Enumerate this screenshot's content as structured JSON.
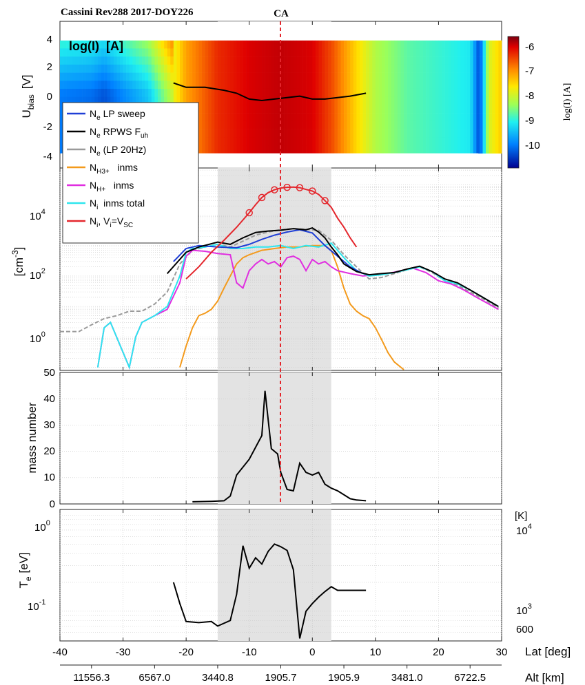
{
  "header": {
    "title": "Cassini Rev288 2017-DOY226",
    "ca_label": "CA"
  },
  "panel1": {
    "inner_label": "log(I)  [A]",
    "ylabel_main": "U",
    "ylabel_sub": "bias",
    "ylabel_unit": "[V]",
    "yticks": [
      "4",
      "2",
      "0",
      "-2",
      "-4"
    ],
    "colorbar_label": "log(I) [A]",
    "colorbar_ticks": [
      "-6",
      "-7",
      "-8",
      "-9",
      "-10"
    ]
  },
  "legend": {
    "entries": [
      {
        "main": "N",
        "sub": "e",
        "rest": " LP sweep",
        "color": "#1f3fd6"
      },
      {
        "main": "N",
        "sub": "e",
        "rest": " RPWS F",
        "sub2": "uh",
        "color": "#000000"
      },
      {
        "main": "N",
        "sub": "e",
        "rest": " (LP 20Hz)",
        "color": "#9a9a9a"
      },
      {
        "main": "N",
        "sub": "H3+",
        "rest": "   inms",
        "color": "#f39a1c"
      },
      {
        "main": "N",
        "sub": "H+",
        "rest": "   inms",
        "color": "#e02ee0"
      },
      {
        "main": "N",
        "sub": "i",
        "rest": "  inms total",
        "color": "#2ee6ee"
      },
      {
        "main": "N",
        "sub": "i",
        "rest": ", V",
        "sub2": "i",
        "rest2": "=V",
        "sub3": "SC",
        "color": "#e4262c"
      }
    ]
  },
  "panel2": {
    "ylabel": "[cm",
    "ylabel_sup": "-3",
    "ylabel_end": "]",
    "yticks": [
      {
        "base": "10",
        "exp": "4"
      },
      {
        "base": "10",
        "exp": "2"
      },
      {
        "base": "10",
        "exp": "0"
      }
    ]
  },
  "panel3": {
    "ylabel": "mass number",
    "yticks": [
      "50",
      "40",
      "30",
      "20",
      "10",
      "0"
    ]
  },
  "panel4": {
    "ylabel_main": "T",
    "ylabel_sub": "e",
    "ylabel_unit": " [eV]",
    "yticks_left": [
      {
        "base": "10",
        "exp": "0"
      },
      {
        "base": "10",
        "exp": "-1"
      }
    ],
    "right_unit": "[K]",
    "yticks_right": [
      {
        "base": "10",
        "exp": "4"
      },
      {
        "base": "10",
        "exp": "3"
      },
      {
        "plain": "600"
      }
    ]
  },
  "xaxis": {
    "lat_ticks": [
      "-40",
      "-30",
      "-20",
      "-10",
      "0",
      "10",
      "20",
      "30"
    ],
    "lat_label": "Lat [deg]",
    "alt_ticks": [
      "11556.3",
      "6567.0",
      "3440.8",
      "1905.7",
      "1905.9",
      "3481.0",
      "6722.5"
    ],
    "alt_label": "Alt [km]"
  },
  "colors": {
    "ca_line": "#e4262c",
    "shade": "#e3e3e3",
    "sweep_blue": "#1f3fd6",
    "rpws_black": "#000000",
    "lp20_gray": "#9a9a9a",
    "h3_orange": "#f39a1c",
    "h_magenta": "#e02ee0",
    "itot_cyan": "#2ee6ee",
    "vsc_red": "#e4262c"
  },
  "chart_data": [
    {
      "type": "heatmap",
      "panel": "U_bias sweep current",
      "x_quantity": "Lat [deg]",
      "xlim": [
        -40,
        30
      ],
      "ylim": [
        -5,
        5
      ],
      "color_quantity": "log(I) [A]",
      "clim": [
        -11,
        -5.7
      ],
      "approx_logI_by_lat": [
        [
          -40,
          -9.9
        ],
        [
          -35,
          -10.0
        ],
        [
          -33,
          -10.2
        ],
        [
          -30,
          -9.8
        ],
        [
          -26,
          -9.3
        ],
        [
          -24,
          -8.6
        ],
        [
          -22,
          -7.9
        ],
        [
          -20,
          -7.2
        ],
        [
          -15,
          -6.4
        ],
        [
          -10,
          -6.1
        ],
        [
          -5,
          -6.0
        ],
        [
          0,
          -6.1
        ],
        [
          3,
          -6.6
        ],
        [
          7,
          -7.6
        ],
        [
          10,
          -8.3
        ],
        [
          15,
          -8.8
        ],
        [
          20,
          -9.0
        ],
        [
          25,
          -9.2
        ],
        [
          26.5,
          -10.5
        ],
        [
          28,
          -8.0
        ],
        [
          30,
          -7.5
        ]
      ],
      "overlay_line": {
        "name": "U_bias zero crossing",
        "x": [
          -22,
          -20,
          -17,
          -14,
          -12,
          -10,
          -8,
          -6,
          -4,
          -2,
          0,
          2,
          4,
          6,
          8.5
        ],
        "y": [
          0.8,
          0.5,
          0.5,
          0.3,
          0.1,
          -0.3,
          -0.4,
          -0.3,
          -0.2,
          -0.1,
          -0.3,
          -0.3,
          -0.2,
          -0.1,
          0.1
        ]
      }
    },
    {
      "type": "line",
      "panel": "densities",
      "x_quantity": "Lat [deg]",
      "xlim": [
        -40,
        30
      ],
      "ylim_log10": [
        -1.1,
        5.55
      ],
      "y_scale": "log",
      "series": [
        {
          "name": "N_e LP sweep",
          "x": [
            -22,
            -20,
            -18,
            -15,
            -12,
            -10,
            -8,
            -6,
            -4,
            -2,
            0,
            2,
            4,
            6,
            8
          ],
          "y": [
            300,
            800,
            1000,
            900,
            850,
            1100,
            1600,
            2200,
            2800,
            3300,
            2600,
            1000,
            450,
            200,
            120
          ]
        },
        {
          "name": "N_e RPWS F_uh",
          "x": [
            -23,
            -20,
            -18,
            -15,
            -13,
            -11,
            -9,
            -7,
            -5,
            -3,
            -1,
            0,
            1,
            2,
            3,
            4,
            5,
            7,
            9,
            11,
            13,
            15,
            17,
            19,
            21,
            23,
            25,
            27,
            29.5
          ],
          "y": [
            120,
            600,
            900,
            1300,
            1100,
            1800,
            2700,
            3000,
            3200,
            3600,
            3300,
            3800,
            2800,
            1800,
            900,
            500,
            250,
            140,
            110,
            120,
            130,
            170,
            210,
            140,
            80,
            60,
            35,
            20,
            10
          ]
        },
        {
          "name": "N_e (LP 20Hz)",
          "x": [
            -40,
            -37,
            -35,
            -33,
            -31,
            -29,
            -27,
            -25,
            -23,
            -21,
            -19,
            -17,
            -15,
            -13,
            -11,
            -9,
            -7,
            -5,
            -3,
            -1,
            1,
            3,
            5,
            7,
            9,
            11,
            13,
            15,
            17,
            19,
            21,
            23,
            25,
            27,
            29.5
          ],
          "y": [
            1.5,
            1.5,
            2.5,
            4,
            5,
            7,
            7,
            12,
            30,
            250,
            700,
            900,
            1100,
            900,
            1400,
            2200,
            2800,
            3300,
            3600,
            3400,
            3200,
            1500,
            500,
            200,
            80,
            90,
            120,
            160,
            200,
            130,
            70,
            50,
            30,
            18,
            9
          ]
        },
        {
          "name": "N_H3+ inms",
          "x": [
            -21,
            -20,
            -19,
            -18,
            -17,
            -16,
            -15,
            -14,
            -13,
            -12,
            -11,
            -10,
            -8,
            -6,
            -4,
            -2,
            0,
            2,
            3,
            4,
            5,
            6,
            7,
            8,
            9,
            10,
            11,
            12,
            13,
            14.5
          ],
          "y": [
            0.1,
            0.5,
            2,
            5,
            6,
            8,
            15,
            40,
            100,
            250,
            400,
            500,
            700,
            800,
            900,
            900,
            1000,
            1000,
            700,
            200,
            40,
            12,
            7,
            5,
            4,
            2,
            0.8,
            0.3,
            0.15,
            0.08
          ]
        },
        {
          "name": "N_H+ inms",
          "x": [
            -34,
            -33,
            -32,
            -29,
            -28,
            -27,
            -25,
            -23,
            -21,
            -20,
            -19,
            -17,
            -15,
            -13,
            -12,
            -11,
            -10,
            -9,
            -8,
            -7,
            -6,
            -5,
            -4,
            -3,
            -2,
            -1,
            0,
            1,
            2,
            3,
            4,
            6,
            8,
            10,
            12,
            14,
            16,
            18,
            20,
            22,
            24,
            26,
            28,
            29.5
          ],
          "y": [
            0.1,
            2,
            3,
            0.1,
            1,
            3,
            5,
            8,
            60,
            450,
            700,
            650,
            550,
            500,
            60,
            40,
            150,
            250,
            350,
            250,
            300,
            200,
            400,
            450,
            350,
            150,
            350,
            250,
            300,
            200,
            150,
            120,
            100,
            110,
            120,
            150,
            180,
            130,
            70,
            55,
            35,
            20,
            12,
            8
          ]
        },
        {
          "name": "N_i inms total",
          "x": [
            -34,
            -33,
            -32,
            -29,
            -28,
            -27,
            -25,
            -23,
            -21,
            -20,
            -19,
            -17,
            -15,
            -13,
            -11,
            -9,
            -7,
            -5,
            -3,
            -1,
            1,
            3,
            5,
            7,
            9,
            11,
            13,
            15,
            17,
            19,
            21,
            23,
            25,
            27,
            29.5
          ],
          "y": [
            0.1,
            2,
            3,
            0.1,
            1,
            3,
            5,
            10,
            100,
            600,
            800,
            900,
            1100,
            800,
            800,
            900,
            900,
            1000,
            800,
            1000,
            900,
            1200,
            400,
            150,
            100,
            110,
            130,
            160,
            200,
            140,
            70,
            55,
            35,
            20,
            10
          ]
        },
        {
          "name": "N_i, V_i=V_SC",
          "x": [
            -20,
            -18,
            -16,
            -14,
            -12,
            -10,
            -9,
            -8,
            -7,
            -6,
            -5,
            -4,
            -3,
            -2,
            -1,
            0,
            1,
            2,
            3,
            4,
            5,
            6,
            7
          ],
          "y": [
            80,
            200,
            600,
            1500,
            4000,
            12000,
            22000,
            38000,
            55000,
            68000,
            78000,
            82000,
            84000,
            80000,
            70000,
            62000,
            48000,
            30000,
            18000,
            8000,
            4000,
            1800,
            900
          ]
        },
        {
          "name": "N_i, V_i=V_SC markers",
          "x": [
            -10,
            -8,
            -6,
            -4,
            -2,
            0,
            2
          ],
          "y": [
            12000,
            38000,
            68000,
            82000,
            80000,
            62000,
            30000
          ]
        }
      ]
    },
    {
      "type": "line",
      "panel": "mass number",
      "x_quantity": "Lat [deg]",
      "xlim": [
        -40,
        30
      ],
      "ylim": [
        0,
        50
      ],
      "series": [
        {
          "name": "mass number",
          "x": [
            -19,
            -16,
            -14,
            -13,
            -12,
            -10,
            -8,
            -7.5,
            -6.5,
            -5.5,
            -5,
            -4,
            -3,
            -2,
            -1,
            0,
            1,
            2,
            3,
            4,
            5,
            6,
            7,
            8.5
          ],
          "y": [
            0.8,
            1,
            1.2,
            3,
            11,
            17,
            26,
            43,
            21,
            19,
            12,
            5.5,
            5,
            15.5,
            12,
            11,
            12,
            7.5,
            6,
            5,
            3.5,
            2,
            1.5,
            1.2
          ]
        }
      ]
    },
    {
      "type": "line",
      "panel": "electron temperature",
      "x_quantity": "Lat [deg]",
      "xlim": [
        -40,
        30
      ],
      "y_scale": "log",
      "ylim_log10": [
        -1.31,
        0.06
      ],
      "series": [
        {
          "name": "T_e",
          "x": [
            -22,
            -21,
            -20,
            -18,
            -16,
            -15,
            -13,
            -12,
            -11,
            -10,
            -9,
            -8,
            -7,
            -6,
            -5,
            -4,
            -3,
            -2,
            -1,
            0,
            1,
            2,
            3,
            4,
            5,
            6,
            7,
            8.5
          ],
          "y": [
            0.2,
            0.12,
            0.078,
            0.076,
            0.078,
            0.07,
            0.08,
            0.15,
            0.48,
            0.28,
            0.36,
            0.31,
            0.42,
            0.5,
            0.47,
            0.43,
            0.27,
            0.052,
            0.1,
            0.12,
            0.14,
            0.16,
            0.18,
            0.165,
            0.165,
            0.165,
            0.165,
            0.165
          ]
        }
      ]
    }
  ]
}
